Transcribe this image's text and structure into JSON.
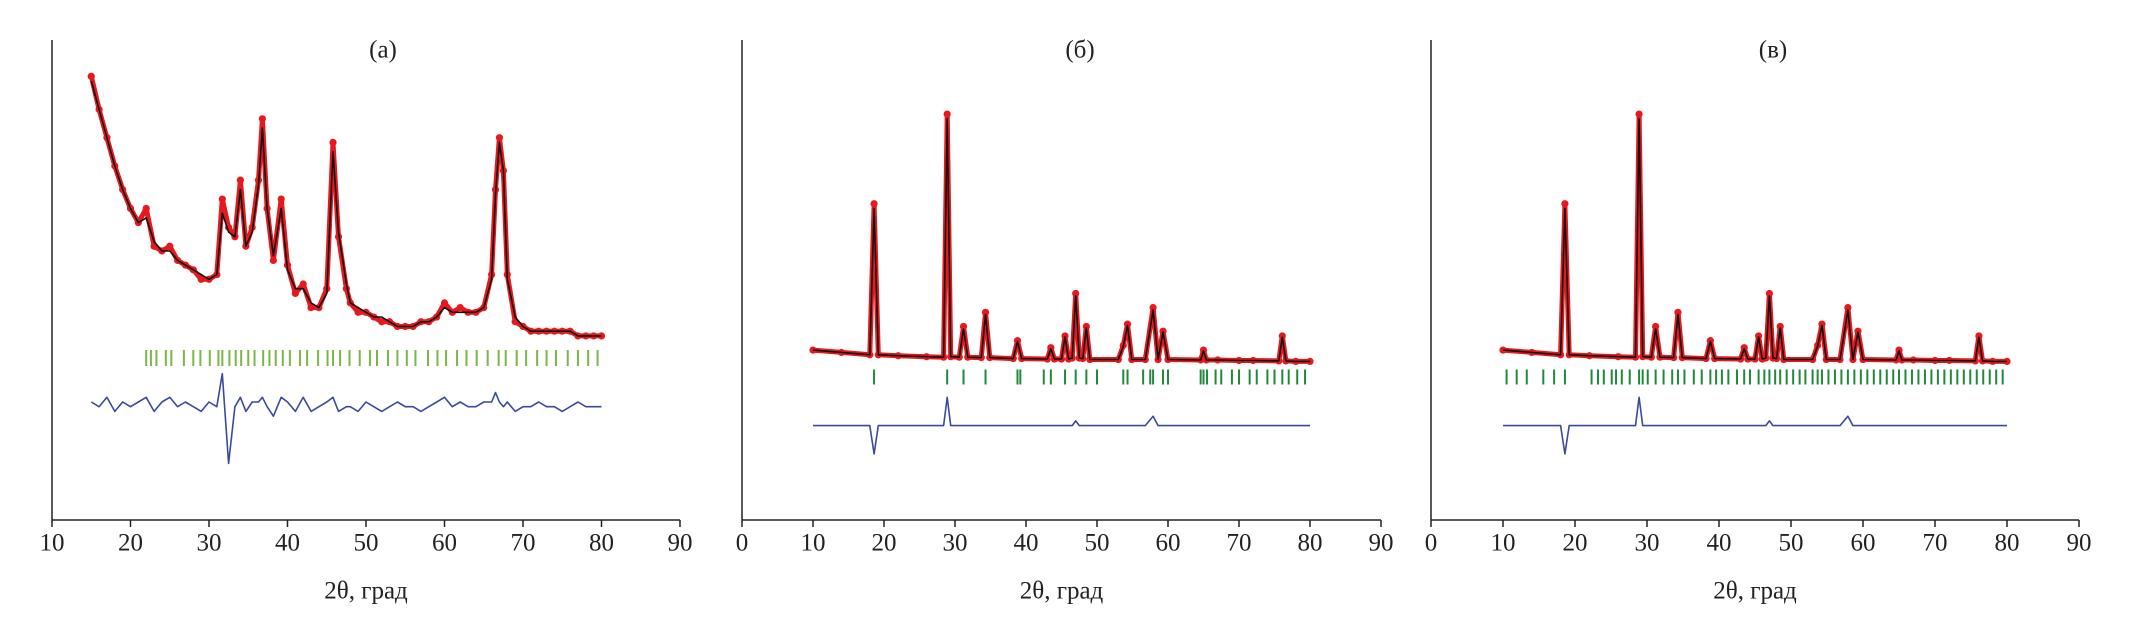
{
  "chart_data": [
    {
      "type": "line",
      "title": "(а)",
      "x_label": "2θ, град",
      "xlim": [
        10,
        90
      ],
      "xticks": [
        10,
        20,
        30,
        40,
        50,
        60,
        70,
        80,
        90
      ],
      "ylim": [
        0,
        100
      ],
      "x": [
        15,
        16,
        17,
        18,
        19,
        20,
        21,
        22,
        23,
        24,
        25,
        26,
        27,
        28,
        29,
        30,
        31,
        31.7,
        32.5,
        33.3,
        34,
        34.7,
        35.5,
        36.3,
        36.8,
        37.4,
        38.2,
        39.2,
        40,
        41,
        42,
        43,
        44,
        45,
        45.8,
        46.5,
        47.5,
        48,
        49,
        50,
        51,
        52,
        53,
        54,
        55,
        56,
        57,
        58,
        59,
        60,
        61,
        62,
        63,
        64,
        65,
        66,
        66.5,
        67,
        67.5,
        68,
        69,
        70,
        71,
        72,
        73,
        74,
        75,
        76,
        77,
        78,
        79,
        80
      ],
      "series": [
        {
          "mode": "markers",
          "color": "#e8191e",
          "values": [
            94,
            87,
            81,
            75,
            70,
            66,
            63,
            66,
            58,
            57,
            58,
            55,
            54,
            53,
            51,
            51,
            52,
            68,
            62,
            60,
            72,
            58,
            62,
            72,
            85,
            66,
            55,
            68,
            54,
            48,
            50,
            45,
            45,
            49,
            80,
            60,
            49,
            46,
            44,
            44,
            43,
            42,
            42,
            41,
            41,
            41,
            42,
            42,
            43,
            46,
            44,
            45,
            44,
            44,
            45,
            52,
            70,
            81,
            74,
            52,
            42,
            41,
            40,
            40,
            40,
            40,
            40,
            40,
            39,
            39,
            39,
            39
          ]
        },
        {
          "mode": "line",
          "color": "#111111",
          "values": [
            93,
            87,
            81,
            75,
            70,
            66,
            63,
            64,
            59,
            57,
            57,
            55,
            54,
            53,
            52,
            51,
            52,
            65,
            61,
            60,
            70,
            58,
            61,
            71,
            83,
            66,
            56,
            66,
            53,
            49,
            49,
            46,
            45,
            48,
            78,
            61,
            50,
            46,
            45,
            44,
            43,
            43,
            42,
            41,
            41,
            41,
            42,
            42,
            43,
            45,
            44,
            44,
            44,
            44,
            45,
            51,
            69,
            80,
            74,
            51,
            43,
            41,
            40,
            40,
            40,
            40,
            40,
            40,
            39,
            39,
            39,
            39
          ]
        },
        {
          "mode": "line",
          "color": "#3a4a9e",
          "values": [
            25,
            24,
            26,
            23,
            25,
            24,
            25,
            26,
            23,
            25,
            26,
            24,
            25,
            24,
            23,
            25,
            24,
            31,
            12,
            24,
            26,
            23,
            25,
            25,
            26,
            24,
            22,
            26,
            25,
            23,
            26,
            23,
            24,
            25,
            26,
            23,
            24,
            24,
            23,
            25,
            24,
            23,
            24,
            25,
            24,
            24,
            23,
            24,
            25,
            26,
            24,
            25,
            24,
            24,
            25,
            25,
            27,
            25,
            24,
            25,
            23,
            24,
            24,
            25,
            24,
            24,
            23,
            24,
            25,
            24,
            24,
            24
          ]
        }
      ],
      "reflections": {
        "color": "#7ab648",
        "x": [
          22,
          22.6,
          23.3,
          24.5,
          25.2,
          26.8,
          28,
          28.9,
          30.1,
          31.2,
          31.7,
          32.6,
          33.4,
          34.1,
          35,
          35.8,
          36.9,
          37.7,
          38.5,
          39.4,
          40.3,
          41.6,
          42.5,
          43.9,
          45.1,
          45.8,
          46.7,
          47.9,
          49.2,
          50.5,
          51.4,
          52.8,
          54,
          55.2,
          56.3,
          57.9,
          59.1,
          60.2,
          61.6,
          62.8,
          64.1,
          65.5,
          66.9,
          67.8,
          69.2,
          70.4,
          71.8,
          73,
          74.2,
          75.7,
          77,
          78.3,
          79.5
        ]
      }
    },
    {
      "type": "line",
      "title": "(б)",
      "x_label": "2θ, град",
      "xlim": [
        0,
        90
      ],
      "xticks": [
        0,
        10,
        20,
        30,
        40,
        50,
        60,
        70,
        80,
        90
      ],
      "ylim": [
        0,
        100
      ],
      "x": [
        10,
        14,
        18,
        18.6,
        19.2,
        22,
        26,
        28.4,
        28.9,
        29.4,
        30.6,
        31.2,
        31.8,
        33.7,
        34.3,
        34.9,
        38.2,
        38.8,
        39.4,
        43,
        43.5,
        44,
        45,
        45.5,
        46,
        46.5,
        47,
        47.5,
        48,
        48.5,
        49,
        53,
        53.7,
        54.3,
        54.9,
        56.8,
        57.9,
        58.6,
        59.3,
        60,
        64.6,
        65,
        65.4,
        67,
        70,
        72,
        75.6,
        76.1,
        76.6,
        78,
        80
      ],
      "series": [
        {
          "mode": "markers",
          "color": "#e8191e",
          "values": [
            36,
            35.5,
            35,
            67,
            35,
            34.8,
            34.6,
            34.5,
            86,
            34.6,
            34.5,
            41,
            34.5,
            34.4,
            44,
            34.4,
            34.2,
            38,
            34.2,
            34.1,
            36.5,
            34.1,
            34.1,
            39,
            34.1,
            34.3,
            48,
            34.3,
            34.2,
            41,
            34,
            34,
            37,
            41.5,
            34,
            34,
            45,
            34,
            40,
            34,
            33.9,
            36,
            33.9,
            33.9,
            33.8,
            33.8,
            33.7,
            39,
            33.7,
            33.6,
            33.6
          ]
        },
        {
          "mode": "line",
          "color": "#111111",
          "values": [
            36,
            35.5,
            35,
            66,
            35,
            34.8,
            34.6,
            34.5,
            85,
            34.6,
            34.5,
            40.5,
            34.5,
            34.4,
            43.5,
            34.4,
            34.2,
            37.8,
            34.2,
            34.1,
            36.3,
            34.1,
            34.1,
            38.8,
            34.1,
            34.3,
            47.5,
            34.3,
            34.2,
            40.7,
            34,
            34,
            36.8,
            41.2,
            34,
            34,
            44.5,
            34,
            39.8,
            34,
            33.9,
            35.8,
            33.9,
            33.9,
            33.8,
            33.8,
            33.7,
            38.7,
            33.7,
            33.6,
            33.6
          ]
        },
        {
          "mode": "line",
          "color": "#3a4a9e",
          "values": [
            20,
            20,
            20,
            14,
            20,
            20,
            20,
            20,
            26,
            20,
            20,
            20,
            20,
            20,
            20,
            20,
            20,
            20,
            20,
            20,
            20,
            20,
            20,
            20,
            20,
            20,
            21,
            20,
            20,
            20,
            20,
            20,
            20,
            20,
            20,
            20,
            22,
            20,
            20,
            20,
            20,
            20,
            20,
            20,
            20,
            20,
            20,
            20,
            20,
            20,
            20
          ]
        }
      ],
      "reflections": {
        "color": "#1e8a3a",
        "x": [
          18.6,
          28.9,
          31.2,
          34.3,
          38.8,
          39.2,
          42.5,
          43.5,
          45.5,
          47,
          48.5,
          50,
          53.7,
          54.3,
          56.5,
          57.5,
          57.9,
          59.3,
          60,
          64.6,
          65,
          65.5,
          66.7,
          67.5,
          69,
          70,
          71.5,
          72.5,
          74,
          75,
          76.1,
          77,
          78.2,
          79.3
        ]
      }
    },
    {
      "type": "line",
      "title": "(в)",
      "x_label": "2θ, град",
      "xlim": [
        0,
        90
      ],
      "xticks": [
        0,
        10,
        20,
        30,
        40,
        50,
        60,
        70,
        80,
        90
      ],
      "ylim": [
        0,
        100
      ],
      "x": [
        10,
        14,
        18,
        18.6,
        19.2,
        22,
        26,
        28.4,
        28.9,
        29.4,
        30.6,
        31.2,
        31.8,
        33.7,
        34.3,
        34.9,
        38.2,
        38.8,
        39.4,
        43,
        43.5,
        44,
        45,
        45.5,
        46,
        46.5,
        47,
        47.5,
        48,
        48.5,
        49,
        53,
        53.7,
        54.3,
        54.9,
        56.8,
        57.9,
        58.6,
        59.3,
        60,
        64.6,
        65,
        65.4,
        67,
        70,
        72,
        75.6,
        76.1,
        76.6,
        78,
        80
      ],
      "series": [
        {
          "mode": "markers",
          "color": "#e8191e",
          "values": [
            36,
            35.5,
            35,
            67,
            35,
            34.8,
            34.6,
            34.5,
            86,
            34.6,
            34.5,
            41,
            34.5,
            34.4,
            44,
            34.4,
            34.2,
            38,
            34.2,
            34.1,
            36.5,
            34.1,
            34.1,
            39,
            34.1,
            34.3,
            48,
            34.3,
            34.2,
            41,
            34,
            34,
            37,
            41.5,
            34,
            34,
            45,
            34,
            40,
            34,
            33.9,
            36,
            33.9,
            33.9,
            33.8,
            33.8,
            33.7,
            39,
            33.7,
            33.6,
            33.6
          ]
        },
        {
          "mode": "line",
          "color": "#111111",
          "values": [
            36,
            35.5,
            35,
            66,
            35,
            34.8,
            34.6,
            34.5,
            85,
            34.6,
            34.5,
            40.5,
            34.5,
            34.4,
            43.5,
            34.4,
            34.2,
            37.8,
            34.2,
            34.1,
            36.3,
            34.1,
            34.1,
            38.8,
            34.1,
            34.3,
            47.5,
            34.3,
            34.2,
            40.7,
            34,
            34,
            36.8,
            41.2,
            34,
            34,
            44.5,
            34,
            39.8,
            34,
            33.9,
            35.8,
            33.9,
            33.9,
            33.8,
            33.8,
            33.7,
            38.7,
            33.7,
            33.6,
            33.6
          ]
        },
        {
          "mode": "line",
          "color": "#3a4a9e",
          "values": [
            20,
            20,
            20,
            14,
            20,
            20,
            20,
            20,
            26,
            20,
            20,
            20,
            20,
            20,
            20,
            20,
            20,
            20,
            20,
            20,
            20,
            20,
            20,
            20,
            20,
            20,
            21,
            20,
            20,
            20,
            20,
            20,
            20,
            20,
            20,
            20,
            22,
            20,
            20,
            20,
            20,
            20,
            20,
            20,
            20,
            20,
            20,
            20,
            20,
            20,
            20
          ]
        }
      ],
      "reflections": {
        "color": "#1e8a3a",
        "x": [
          10.5,
          11.9,
          13.3,
          15.6,
          17.1,
          18.6,
          22.3,
          23.2,
          24,
          25.1,
          25.7,
          26.5,
          27.6,
          28.9,
          29.4,
          30.1,
          31.2,
          32.3,
          33.5,
          34.3,
          35.2,
          36.5,
          37.6,
          38.8,
          39.6,
          40.4,
          41.3,
          42.5,
          43.5,
          44.3,
          45.5,
          46.3,
          47,
          47.8,
          48.5,
          49.4,
          50.3,
          51.2,
          52,
          53,
          53.7,
          54.3,
          55.2,
          56.1,
          57,
          57.9,
          58.8,
          59.7,
          60.6,
          61.5,
          62.4,
          63.3,
          64.2,
          65,
          65.9,
          66.8,
          67.7,
          68.6,
          69.5,
          70.4,
          71.3,
          72.2,
          73.1,
          74,
          74.9,
          75.8,
          76.7,
          77.6,
          78.5,
          79.4
        ]
      }
    }
  ]
}
